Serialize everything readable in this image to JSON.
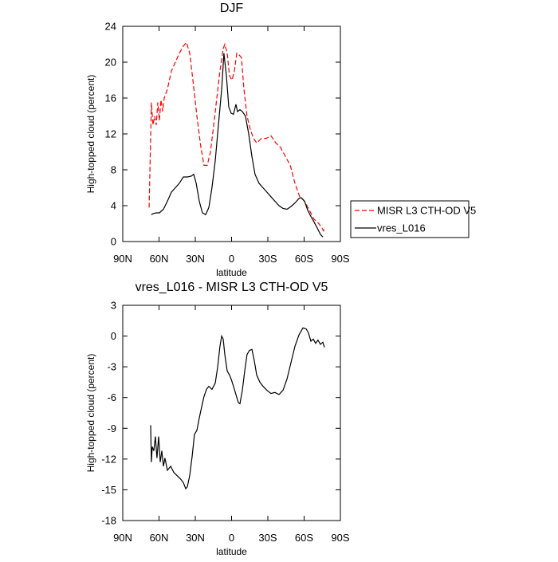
{
  "chart_data": [
    {
      "type": "line",
      "title": "DJF",
      "xlabel": "latitude",
      "ylabel": "High-topped cloud (percent)",
      "xlim": [
        90,
        -90
      ],
      "xticks": [
        {
          "value": 90,
          "label": "90N"
        },
        {
          "value": 60,
          "label": "60N"
        },
        {
          "value": 30,
          "label": "30N"
        },
        0,
        {
          "value": -30,
          "label": "30S"
        },
        {
          "value": -60,
          "label": "60S"
        },
        {
          "value": -90,
          "label": "90S"
        }
      ],
      "ylim": [
        0,
        24
      ],
      "yticks": [
        0,
        4,
        8,
        12,
        16,
        20,
        24
      ],
      "legend": "right",
      "series": [
        {
          "name": "MISR L3 CTH-OD V5",
          "color": "#ff0000",
          "dashed": true,
          "x": [
            68.2,
            66.3,
            65.0,
            63.6,
            62.3,
            61.0,
            59.7,
            58.4,
            57.0,
            55.7,
            53.1,
            49.8,
            46.5,
            43.2,
            39.9,
            37.3,
            34.6,
            32.0,
            28.7,
            25.4,
            22.8,
            20.1,
            17.5,
            14.8,
            12.2,
            9.6,
            6.9,
            5.6,
            3.6,
            1.7,
            -0.3,
            -2.3,
            -4.3,
            -6.3,
            -8.2,
            -10.2,
            -12.8,
            -15.5,
            -18.1,
            -20.8,
            -24.7,
            -28.7,
            -32.6,
            -36.6,
            -40.5,
            -44.5,
            -48.5,
            -52.4,
            -56.4,
            -60.3,
            -64.3,
            -68.2,
            -72.2,
            -74.8,
            -76.1,
            -76.8
          ],
          "values": [
            3.8,
            15.5,
            13,
            14,
            13,
            15.5,
            13.5,
            15.8,
            14.5,
            16,
            17,
            19,
            20,
            21,
            21.8,
            22.2,
            21,
            18,
            14,
            10.5,
            8.5,
            8.5,
            10,
            13,
            16,
            19,
            21.5,
            22,
            21,
            18.5,
            18,
            19,
            21,
            20.8,
            20.5,
            17,
            14,
            12.5,
            11.5,
            11,
            11.5,
            11.5,
            11.8,
            11,
            10.5,
            9.5,
            8.5,
            6.5,
            5,
            4.5,
            3.5,
            2.5,
            2,
            1.5,
            1.2,
            1.5
          ]
        },
        {
          "name": "vres_L016",
          "color": "#000000",
          "dashed": false,
          "x": [
            66.3,
            65.0,
            62.3,
            59.7,
            56.4,
            53.1,
            49.8,
            46.5,
            43.2,
            39.9,
            36.6,
            33.3,
            31.3,
            29.3,
            26.7,
            24.1,
            21.4,
            18.8,
            16.2,
            13.5,
            10.9,
            8.2,
            6.3,
            4.3,
            2.3,
            0.3,
            -1.6,
            -3.6,
            -4.9,
            -6.9,
            -8.9,
            -11.5,
            -14.2,
            -16.8,
            -19.4,
            -22.7,
            -26.0,
            -29.3,
            -32.6,
            -35.9,
            -39.2,
            -42.5,
            -45.8,
            -49.1,
            -52.4,
            -55.7,
            -57.7,
            -60.3,
            -63.0,
            -65.6,
            -68.2,
            -70.9,
            -73.5,
            -75.5
          ],
          "values": [
            3.0,
            3.1,
            3.2,
            3.2,
            3.6,
            4.5,
            5.5,
            6.0,
            6.5,
            7.2,
            7.2,
            7.3,
            7.5,
            6.5,
            4.5,
            3.2,
            3.0,
            3.8,
            6,
            9,
            13,
            17,
            21,
            18.5,
            15,
            14.3,
            14.2,
            15.3,
            14.5,
            14.7,
            14.5,
            14,
            12,
            9.5,
            7.5,
            6.5,
            6,
            5.5,
            5,
            4.5,
            4,
            3.7,
            3.6,
            3.9,
            4.3,
            4.8,
            4.9,
            4.5,
            3.5,
            2.8,
            2.2,
            1.5,
            0.8,
            0.5
          ]
        }
      ]
    },
    {
      "type": "line",
      "title": "vres_L016 - MISR L3 CTH-OD V5",
      "xlabel": "latitude",
      "ylabel": "High-topped cloud (percent)",
      "xlim": [
        90,
        -90
      ],
      "xticks": [
        {
          "value": 90,
          "label": "90N"
        },
        {
          "value": 60,
          "label": "60N"
        },
        {
          "value": 30,
          "label": "30N"
        },
        0,
        {
          "value": -30,
          "label": "30S"
        },
        {
          "value": -60,
          "label": "60S"
        },
        {
          "value": -90,
          "label": "90S"
        }
      ],
      "ylim": [
        -18,
        3
      ],
      "yticks": [
        -18,
        -15,
        -12,
        -9,
        -6,
        -3,
        0,
        3
      ],
      "series": [
        {
          "color": "#000000",
          "dashed": false,
          "x": [
            66.9,
            66.3,
            65.6,
            64.3,
            63.0,
            61.7,
            60.3,
            59.0,
            57.7,
            56.4,
            55.1,
            53.1,
            50.4,
            47.8,
            45.2,
            42.5,
            39.9,
            37.9,
            36.6,
            34.6,
            32.6,
            30.7,
            28.7,
            26.7,
            24.7,
            22.8,
            20.8,
            18.8,
            16.2,
            13.5,
            11.5,
            9.6,
            8.2,
            6.9,
            5.6,
            3.6,
            1.7,
            0.3,
            -1.6,
            -3.6,
            -5.6,
            -6.9,
            -8.9,
            -10.9,
            -12.8,
            -14.8,
            -16.8,
            -18.8,
            -20.8,
            -23.4,
            -26.0,
            -29.3,
            -32.6,
            -35.9,
            -39.2,
            -42.5,
            -45.8,
            -49.1,
            -52.4,
            -55.7,
            -59.0,
            -61.7,
            -63.6,
            -65.6,
            -67.6,
            -69.5,
            -71.5,
            -73.5,
            -75.5,
            -76.8
          ],
          "values": [
            -8.7,
            -12.3,
            -10.8,
            -11.2,
            -9.8,
            -11.9,
            -9.8,
            -12.3,
            -11.2,
            -12.7,
            -11.9,
            -13.1,
            -12.7,
            -13.3,
            -13.6,
            -13.9,
            -14.3,
            -14.9,
            -14.7,
            -13.6,
            -11.7,
            -9.6,
            -9.2,
            -8.0,
            -6.9,
            -5.9,
            -5.2,
            -4.9,
            -5.2,
            -4.6,
            -3.0,
            -1.0,
            0.0,
            -0.3,
            -1.8,
            -3.4,
            -3.8,
            -4.2,
            -4.9,
            -5.7,
            -6.5,
            -6.6,
            -5.3,
            -3.4,
            -1.8,
            -1.4,
            -1.3,
            -2.4,
            -3.8,
            -4.5,
            -4.9,
            -5.3,
            -5.6,
            -5.5,
            -5.7,
            -5.3,
            -4.2,
            -2.6,
            -1.0,
            0.1,
            0.8,
            0.7,
            0.3,
            -0.5,
            -0.3,
            -0.7,
            -0.4,
            -0.8,
            -0.6,
            -1.1
          ]
        }
      ]
    }
  ]
}
